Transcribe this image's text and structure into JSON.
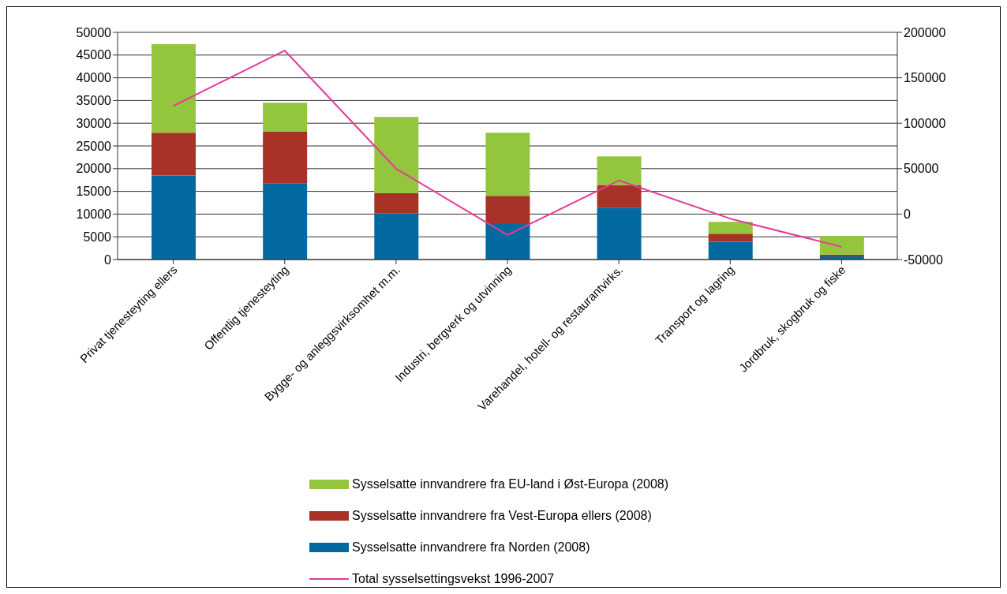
{
  "chart_data": {
    "type": "bar",
    "stacked": true,
    "categories": [
      "Privat tjenesteyting ellers",
      "Offentlig tjenesteyting",
      "Bygge- og anleggsvirksomhet m.m.",
      "Industri, bergverk og utvinning",
      "Varehandel, hotell- og restaurantvirks.",
      "Transport og lagring",
      "Jordbruk, skogbruk og fiske"
    ],
    "series": [
      {
        "name": "Sysselsatte innvandrere fra Norden (2008)",
        "color": "#036aa0",
        "values": [
          18500,
          16800,
          10100,
          8000,
          11400,
          3900,
          700
        ]
      },
      {
        "name": "Sysselsatte innvandrere fra Vest-Europa ellers (2008)",
        "color": "#a93226",
        "values": [
          9400,
          11400,
          4500,
          6000,
          5000,
          1800,
          400
        ]
      },
      {
        "name": "Sysselsatte innvandrere fra EU-land i Øst-Europa (2008)",
        "color": "#93c63d",
        "values": [
          19500,
          6300,
          16800,
          13900,
          6300,
          2600,
          4100
        ]
      },
      {
        "name": "Total sysselsettingsvekst 1996-2007",
        "type": "line",
        "axis": "y2",
        "color": "#e8399a",
        "values": [
          119000,
          180000,
          50000,
          -23000,
          37000,
          -5000,
          -36000
        ]
      }
    ],
    "ylim": [
      0,
      50000
    ],
    "yticks": [
      0,
      5000,
      10000,
      15000,
      20000,
      25000,
      30000,
      35000,
      40000,
      45000,
      50000
    ],
    "y2lim": [
      -50000,
      200000
    ],
    "y2ticks": [
      -50000,
      0,
      50000,
      100000,
      150000,
      200000
    ],
    "grid": "y",
    "legend": "bottom",
    "marker": "none"
  }
}
